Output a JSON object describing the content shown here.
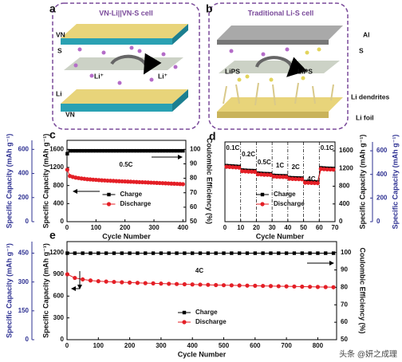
{
  "panel_labels": [
    "a",
    "b",
    "c",
    "d",
    "e"
  ],
  "schematics": [
    {
      "title": "VN-Li||VN-S cell",
      "labels": [
        "VN",
        "S",
        "Li⁺",
        "Li⁺",
        "Li",
        "VN"
      ]
    },
    {
      "title": "Traditional Li-S cell",
      "labels": [
        "Al",
        "S",
        "LiPS",
        "LiPS",
        "Li dendrites",
        "Li foil"
      ]
    }
  ],
  "chart_data": [
    {
      "type": "scatter",
      "x_label": "Cycle Number",
      "y_label": "Specific Capacity (mAh g⁻¹)",
      "y2_label": "Coulombic Efficiency (%)",
      "y3_label": "Specific Capacity (mAh g⁻¹)",
      "y3_color": "#2e3192",
      "x": [
        1,
        10,
        20,
        30,
        40,
        50,
        60,
        70,
        80,
        90,
        100,
        110,
        120,
        130,
        140,
        150,
        160,
        170,
        180,
        190,
        200,
        210,
        220,
        230,
        240,
        250,
        260,
        270,
        280,
        290,
        300,
        310,
        320,
        330,
        340,
        350,
        360,
        370,
        380,
        390,
        400
      ],
      "xlim": [
        0,
        410
      ],
      "xticks": [
        0,
        100,
        200,
        300,
        400
      ],
      "ylim": [
        0,
        1800
      ],
      "yticks": [
        0,
        400,
        800,
        1200,
        1600
      ],
      "y2lim": [
        50,
        106.25
      ],
      "y2ticks": [
        50,
        60,
        70,
        80,
        90,
        100
      ],
      "y3lim": [
        0,
        675
      ],
      "y3ticks": [
        0,
        200,
        400,
        600
      ],
      "annotations": [
        "0.5C"
      ],
      "legend": "lower-center",
      "series": [
        {
          "name": "Charge",
          "color": "#000000",
          "marker": "square",
          "axis": "y2",
          "values": [
            97,
            99,
            99,
            99,
            99,
            99,
            99,
            99,
            99,
            99,
            99,
            99,
            99,
            99,
            99,
            99,
            99,
            99,
            99,
            99,
            99,
            99,
            99,
            99,
            99,
            99,
            99,
            99,
            99,
            99,
            99,
            99,
            99,
            99,
            99,
            99,
            99,
            99,
            99,
            99,
            99
          ]
        },
        {
          "name": "Discharge",
          "color": "#e41f26",
          "marker": "circle",
          "values": [
            1150,
            1010,
            990,
            975,
            965,
            955,
            948,
            940,
            935,
            930,
            925,
            920,
            915,
            912,
            908,
            905,
            902,
            898,
            895,
            892,
            890,
            887,
            884,
            881,
            878,
            875,
            872,
            870,
            867,
            864,
            861,
            858,
            855,
            852,
            849,
            846,
            843,
            840,
            837,
            834,
            830
          ]
        }
      ]
    },
    {
      "type": "scatter",
      "x_label": "Cycle Number",
      "y_label": "Specific Capacity (mAh g⁻¹)",
      "y3_label": "Specific Capacity (mAh g⁻¹)",
      "y3_color": "#2e3192",
      "x": [
        1,
        3,
        5,
        7,
        9,
        11,
        13,
        15,
        17,
        19,
        21,
        23,
        25,
        27,
        29,
        31,
        33,
        35,
        37,
        39,
        41,
        43,
        45,
        47,
        49,
        51,
        53,
        55,
        57,
        59,
        61,
        63,
        65,
        67,
        69
      ],
      "xlim": [
        0,
        70
      ],
      "xticks": [
        0,
        10,
        20,
        30,
        40,
        50,
        60,
        70
      ],
      "ylim": [
        0,
        1800
      ],
      "yticks": [
        0,
        400,
        800,
        1200,
        1600
      ],
      "y3lim": [
        0,
        675
      ],
      "y3ticks": [
        0,
        200,
        400,
        600
      ],
      "annotations": [
        "0.1C",
        "0.2C",
        "0.5C",
        "1C",
        "2C",
        "4C",
        "0.1C"
      ],
      "legend": "lower-center",
      "series": [
        {
          "name": "Charge",
          "color": "#000000",
          "marker": "square",
          "values": [
            1265,
            1260,
            1255,
            1250,
            1245,
            1165,
            1160,
            1155,
            1153,
            1150,
            1095,
            1090,
            1085,
            1083,
            1080,
            1045,
            1040,
            1037,
            1035,
            1033,
            995,
            990,
            987,
            985,
            983,
            905,
            903,
            900,
            898,
            895,
            1215,
            1210,
            1205,
            1203,
            1200
          ]
        },
        {
          "name": "Discharge",
          "color": "#e41f26",
          "marker": "circle",
          "values": [
            1240,
            1235,
            1230,
            1225,
            1220,
            1140,
            1135,
            1130,
            1128,
            1125,
            1070,
            1065,
            1060,
            1058,
            1055,
            1020,
            1015,
            1012,
            1010,
            1008,
            970,
            965,
            962,
            960,
            958,
            880,
            878,
            875,
            873,
            870,
            1190,
            1185,
            1180,
            1178,
            1175
          ]
        }
      ]
    },
    {
      "type": "scatter",
      "x_label": "Cycle Number",
      "y_label": "Specific Capacity (mAh g⁻¹)",
      "y2_label": "Coulombic Efficiency (%)",
      "y3_label": "Specific Capacity (mAh g⁻¹)",
      "y3_color": "#2e3192",
      "x": [
        1,
        25,
        50,
        75,
        100,
        125,
        150,
        175,
        200,
        225,
        250,
        275,
        300,
        325,
        350,
        375,
        400,
        425,
        450,
        475,
        500,
        525,
        550,
        575,
        600,
        625,
        650,
        675,
        700,
        725,
        750,
        775,
        800,
        825,
        850
      ],
      "xlim": [
        0,
        860
      ],
      "xticks": [
        0,
        100,
        200,
        300,
        400,
        500,
        600,
        700,
        800
      ],
      "ylim": [
        0,
        1350
      ],
      "yticks": [
        0,
        300,
        600,
        900,
        1200
      ],
      "y2lim": [
        50,
        106.25
      ],
      "y2ticks": [
        50,
        60,
        70,
        80,
        90,
        100
      ],
      "y3lim": [
        0,
        510
      ],
      "y3ticks": [
        0,
        150,
        300,
        450
      ],
      "annotations": [
        "4C"
      ],
      "legend": "lower-center",
      "series": [
        {
          "name": "Charge",
          "color": "#000000",
          "marker": "square",
          "axis": "y2",
          "values": [
            99.6,
            99.6,
            99.6,
            99.6,
            99.6,
            99.6,
            99.6,
            99.6,
            99.6,
            99.6,
            99.6,
            99.6,
            99.6,
            99.6,
            99.6,
            99.6,
            99.6,
            99.6,
            99.6,
            99.6,
            99.6,
            99.6,
            99.6,
            99.6,
            99.6,
            99.6,
            99.6,
            99.6,
            99.6,
            99.6,
            99.6,
            99.6,
            99.6,
            99.6,
            99.6
          ]
        },
        {
          "name": "Discharge",
          "color": "#e41f26",
          "marker": "circle",
          "values": [
            900,
            850,
            830,
            815,
            805,
            800,
            795,
            790,
            786,
            782,
            778,
            775,
            772,
            769,
            766,
            763,
            760,
            758,
            755,
            752,
            750,
            748,
            746,
            744,
            742,
            740,
            738,
            736,
            734,
            732,
            730,
            728,
            726,
            724,
            722
          ]
        }
      ]
    }
  ],
  "watermark": "头条 @妍之成理"
}
